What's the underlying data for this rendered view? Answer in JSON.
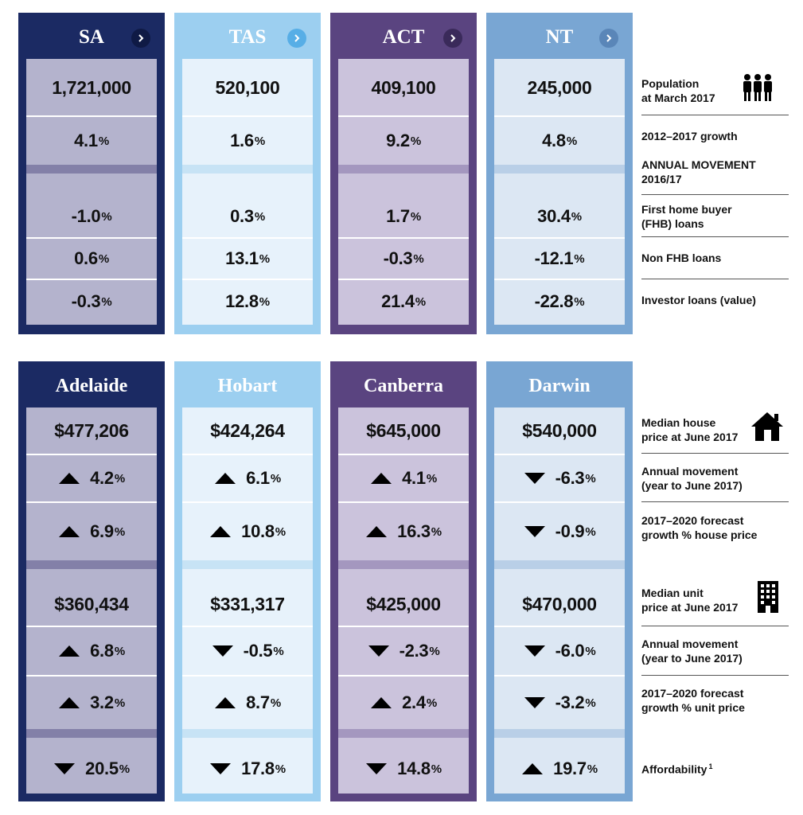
{
  "states": [
    {
      "name": "SA",
      "population": "1,721,000",
      "growth": "4.1",
      "fhb": "-1.0",
      "non_fhb": "0.6",
      "investor": "-0.3"
    },
    {
      "name": "TAS",
      "population": "520,100",
      "growth": "1.6",
      "fhb": "0.3",
      "non_fhb": "13.1",
      "investor": "12.8"
    },
    {
      "name": "ACT",
      "population": "409,100",
      "growth": "9.2",
      "fhb": "1.7",
      "non_fhb": "-0.3",
      "investor": "21.4"
    },
    {
      "name": "NT",
      "population": "245,000",
      "growth": "4.8",
      "fhb": "30.4",
      "non_fhb": "-12.1",
      "investor": "-22.8"
    }
  ],
  "cities": [
    {
      "name": "Adelaide",
      "house_price": "$477,206",
      "house_move": {
        "value": "4.2",
        "dir": "up"
      },
      "house_forecast": {
        "value": "6.9",
        "dir": "up"
      },
      "unit_price": "$360,434",
      "unit_move": {
        "value": "6.8",
        "dir": "up"
      },
      "unit_forecast": {
        "value": "3.2",
        "dir": "up"
      },
      "afford": {
        "value": "20.5",
        "dir": "down"
      }
    },
    {
      "name": "Hobart",
      "house_price": "$424,264",
      "house_move": {
        "value": "6.1",
        "dir": "up"
      },
      "house_forecast": {
        "value": "10.8",
        "dir": "up"
      },
      "unit_price": "$331,317",
      "unit_move": {
        "value": "-0.5",
        "dir": "down"
      },
      "unit_forecast": {
        "value": "8.7",
        "dir": "up"
      },
      "afford": {
        "value": "17.8",
        "dir": "down"
      }
    },
    {
      "name": "Canberra",
      "house_price": "$645,000",
      "house_move": {
        "value": "4.1",
        "dir": "up"
      },
      "house_forecast": {
        "value": "16.3",
        "dir": "up"
      },
      "unit_price": "$425,000",
      "unit_move": {
        "value": "-2.3",
        "dir": "down"
      },
      "unit_forecast": {
        "value": "2.4",
        "dir": "up"
      },
      "afford": {
        "value": "14.8",
        "dir": "down"
      }
    },
    {
      "name": "Darwin",
      "house_price": "$540,000",
      "house_move": {
        "value": "-6.3",
        "dir": "down"
      },
      "house_forecast": {
        "value": "-0.9",
        "dir": "down"
      },
      "unit_price": "$470,000",
      "unit_move": {
        "value": "-6.0",
        "dir": "down"
      },
      "unit_forecast": {
        "value": "-3.2",
        "dir": "down"
      },
      "afford": {
        "value": "19.7",
        "dir": "up"
      }
    }
  ],
  "percent_sign": "%",
  "labels": {
    "population": "Population\nat March 2017",
    "growth": "2012–2017 growth",
    "annual_movement": "ANNUAL MOVEMENT\n2016/17",
    "fhb": "First home buyer\n(FHB) loans",
    "non_fhb": "Non FHB loans",
    "investor": "Investor loans (value)",
    "median_house": "Median house\nprice at June 2017",
    "house_annual": "Annual movement\n(year to June 2017)",
    "house_forecast": "2017–2020 forecast\ngrowth % house price",
    "median_unit": "Median unit\nprice at June 2017",
    "unit_annual": "Annual movement\n(year to June 2017)",
    "unit_forecast": "2017–2020 forecast\ngrowth % unit price",
    "affordability": "Affordability",
    "affordability_note": "1"
  },
  "icons": {
    "chevron": "chevron-right-icon",
    "population": "people-icon",
    "house": "house-icon",
    "unit": "building-icon",
    "up": "triangle-up-icon",
    "down": "triangle-down-icon"
  },
  "theme": [
    {
      "outer": "#1b2a63",
      "inner": "#b4b3cd",
      "band": "#8380a8",
      "head_text": "#ffffff",
      "chev_bg": "#0f1a45"
    },
    {
      "outer": "#9ccff0",
      "inner": "#e7f2fb",
      "band": "#c7e3f5",
      "head_text": "#ffffff",
      "chev_bg": "#57aee6"
    },
    {
      "outer": "#5a4480",
      "inner": "#cbc3dc",
      "band": "#a497bf",
      "head_text": "#ffffff",
      "chev_bg": "#3a2a5a"
    },
    {
      "outer": "#79a6d3",
      "inner": "#dce7f3",
      "band": "#b9cfe7",
      "head_text": "#ffffff",
      "chev_bg": "#5a86b8"
    }
  ]
}
